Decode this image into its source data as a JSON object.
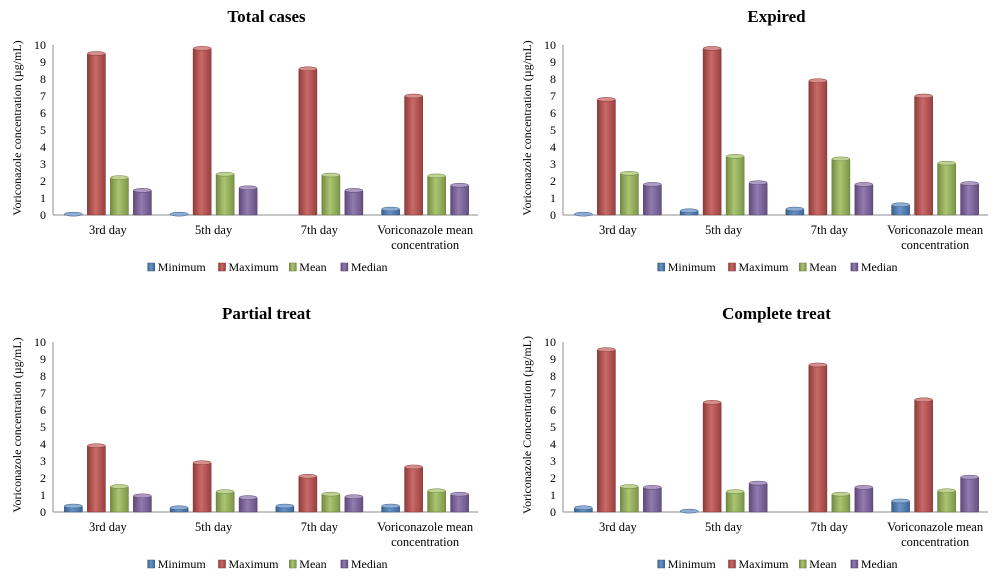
{
  "colors": {
    "Minimum": "#4f81bd",
    "Maximum": "#c0504d",
    "Mean": "#9bbb59",
    "Median": "#8064a2"
  },
  "chart_data": [
    {
      "type": "bar",
      "title": "Total cases",
      "ylabel": "Voriconazole concentration (µg/mL)",
      "xlabel": "",
      "ylim": [
        0,
        10
      ],
      "yticks": [
        0,
        1,
        2,
        3,
        4,
        5,
        6,
        7,
        8,
        9,
        10
      ],
      "categories": [
        [
          "3rd day"
        ],
        [
          "5th day"
        ],
        [
          "7th day"
        ],
        [
          "Voriconazole mean",
          "concentration"
        ]
      ],
      "legend_position": "bottom",
      "series": [
        {
          "name": "Minimum",
          "values": [
            0.05,
            0.05,
            0,
            0.35
          ]
        },
        {
          "name": "Maximum",
          "values": [
            9.5,
            9.8,
            8.6,
            7.0
          ]
        },
        {
          "name": "Mean",
          "values": [
            2.2,
            2.4,
            2.35,
            2.3
          ]
        },
        {
          "name": "Median",
          "values": [
            1.45,
            1.6,
            1.45,
            1.75
          ]
        }
      ]
    },
    {
      "type": "bar",
      "title": "Expired",
      "ylabel": "Voriconazole concentration (µg/mL)",
      "xlabel": "",
      "ylim": [
        0,
        10
      ],
      "yticks": [
        0,
        1,
        2,
        3,
        4,
        5,
        6,
        7,
        8,
        9,
        10
      ],
      "categories": [
        [
          "3rd day"
        ],
        [
          "5th day"
        ],
        [
          "7th day"
        ],
        [
          "Voriconazole mean",
          "concentration"
        ]
      ],
      "legend_position": "bottom",
      "series": [
        {
          "name": "Minimum",
          "values": [
            0.05,
            0.25,
            0.35,
            0.6
          ]
        },
        {
          "name": "Maximum",
          "values": [
            6.8,
            9.8,
            7.9,
            7.0
          ]
        },
        {
          "name": "Mean",
          "values": [
            2.45,
            3.45,
            3.3,
            3.05
          ]
        },
        {
          "name": "Median",
          "values": [
            1.8,
            1.9,
            1.8,
            1.85
          ]
        }
      ]
    },
    {
      "type": "bar",
      "title": "Partial treat",
      "ylabel": "Voriconazole concentration (µg/mL)",
      "xlabel": "",
      "ylim": [
        0,
        10
      ],
      "yticks": [
        0,
        1,
        2,
        3,
        4,
        5,
        6,
        7,
        8,
        9,
        10
      ],
      "categories": [
        [
          "3rd day"
        ],
        [
          "5th day"
        ],
        [
          "7th day"
        ],
        [
          "Voriconazole mean",
          "concentration"
        ]
      ],
      "legend_position": "bottom",
      "series": [
        {
          "name": "Minimum",
          "values": [
            0.35,
            0.25,
            0.35,
            0.35
          ]
        },
        {
          "name": "Maximum",
          "values": [
            3.9,
            2.9,
            2.1,
            2.65
          ]
        },
        {
          "name": "Mean",
          "values": [
            1.5,
            1.2,
            1.05,
            1.25
          ]
        },
        {
          "name": "Median",
          "values": [
            0.95,
            0.85,
            0.9,
            1.05
          ]
        }
      ]
    },
    {
      "type": "bar",
      "title": "Complete treat",
      "ylabel": "Voriconazole Concentration (µg/mL)",
      "xlabel": "",
      "ylim": [
        0,
        10
      ],
      "yticks": [
        0,
        1,
        2,
        3,
        4,
        5,
        6,
        7,
        8,
        9,
        10
      ],
      "categories": [
        [
          "3rd day"
        ],
        [
          "5th day"
        ],
        [
          "7th day"
        ],
        [
          "Voriconazole mean",
          "concentration"
        ]
      ],
      "legend_position": "bottom",
      "series": [
        {
          "name": "Minimum",
          "values": [
            0.25,
            0.05,
            0,
            0.65
          ]
        },
        {
          "name": "Maximum",
          "values": [
            9.55,
            6.45,
            8.65,
            6.6
          ]
        },
        {
          "name": "Mean",
          "values": [
            1.5,
            1.2,
            1.05,
            1.25
          ]
        },
        {
          "name": "Median",
          "values": [
            1.45,
            1.7,
            1.45,
            2.05
          ]
        }
      ]
    }
  ]
}
